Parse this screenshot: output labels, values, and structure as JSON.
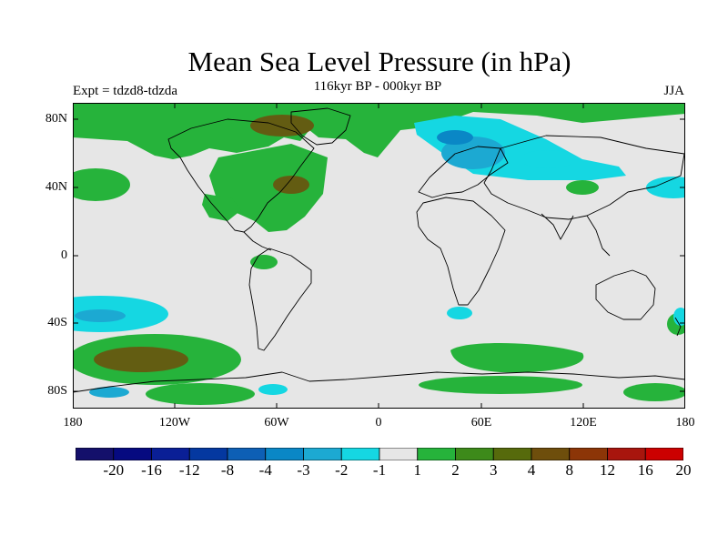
{
  "title": "Mean Sea Level Pressure (in hPa)",
  "subtitle": "116kyr BP - 000kyr BP",
  "experiment": "Expt = tdzd8-tdzda",
  "season": "JJA",
  "y_axis_labels": [
    "80N",
    "40N",
    "0",
    "40S",
    "80S"
  ],
  "x_axis_labels": [
    "180",
    "120W",
    "60W",
    "0",
    "60E",
    "120E",
    "180"
  ],
  "colorbar": {
    "labels": [
      "-20",
      "-16",
      "-12",
      "-8",
      "-4",
      "-3",
      "-2",
      "-1",
      "1",
      "2",
      "3",
      "4",
      "8",
      "12",
      "16",
      "20"
    ],
    "colors": [
      "#14106b",
      "#060a80",
      "#0a1f96",
      "#0438a0",
      "#0d5fb5",
      "#0a87c6",
      "#1ca9d2",
      "#15d7e2",
      "#e6e6e6",
      "#26b33b",
      "#3d8a1a",
      "#566a0c",
      "#6e4e0c",
      "#8c3507",
      "#a8150d",
      "#cc0000"
    ]
  },
  "colors": {
    "neutral": "#e6e6e6",
    "green": "#26b33b",
    "dark_green": "#3d8a1a",
    "olive": "#566a0c",
    "cyan": "#15d7e2",
    "light_blue": "#1ca9d2",
    "blue": "#0a87c6"
  }
}
